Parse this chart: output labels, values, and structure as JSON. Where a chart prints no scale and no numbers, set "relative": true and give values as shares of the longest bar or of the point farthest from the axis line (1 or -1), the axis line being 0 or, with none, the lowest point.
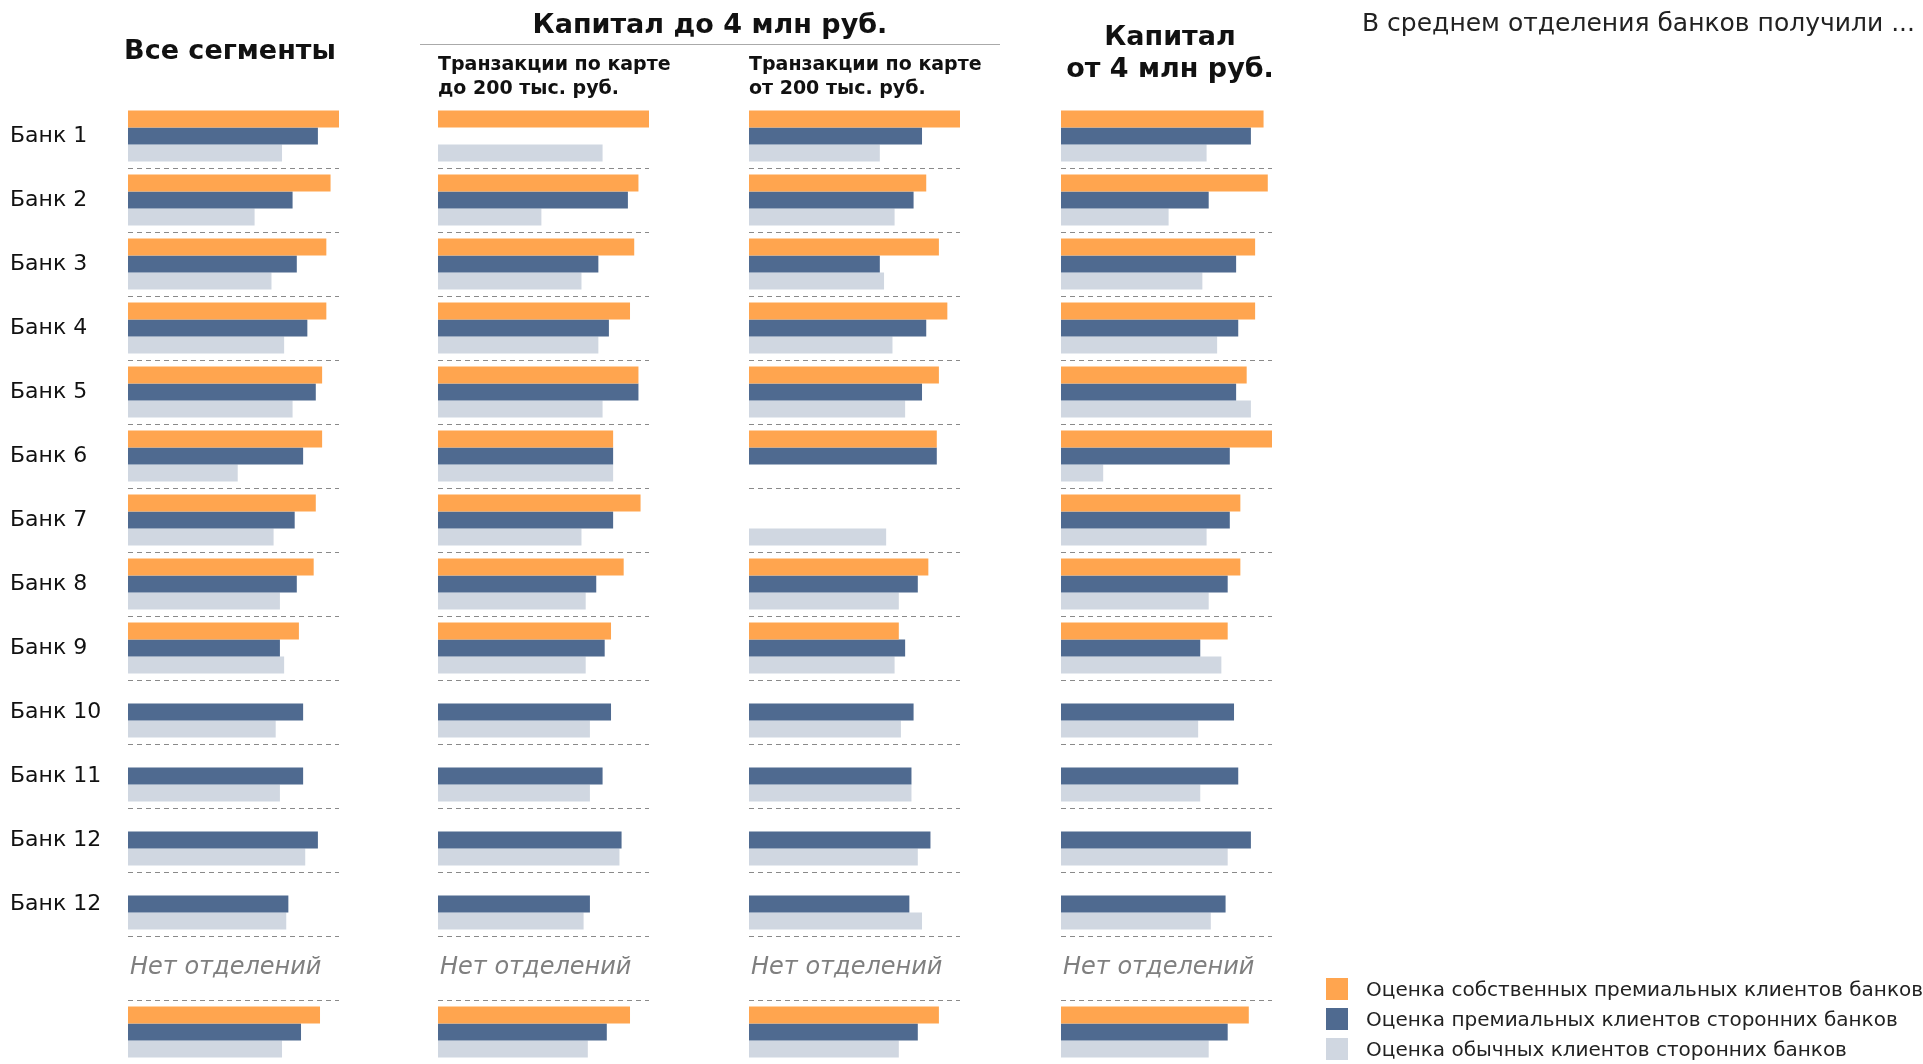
{
  "chart_data": [
    {
      "type": "bar",
      "orientation": "horizontal",
      "relative": true,
      "title": "Все сегменты",
      "grid": "y",
      "tick_labels": "y",
      "annotations": [
        "Нет отделений"
      ],
      "categories": [
        "Банк 1",
        "Банк 2",
        "Банк 3",
        "Банк 4",
        "Банк 5",
        "Банк 6",
        "Банк 7",
        "Банк 8",
        "Банк 9",
        "Банк 10",
        "Банк 11",
        "Банк 12",
        "Банк 12",
        null,
        null
      ],
      "series": [
        {
          "color": "#ffa54f",
          "values": [
            1,
            0.96,
            0.94,
            0.94,
            0.92,
            0.92,
            0.89,
            0.88,
            0.81,
            null,
            null,
            null,
            null,
            null,
            0.91
          ]
        },
        {
          "color": "#4f6a90",
          "values": [
            0.9,
            0.78,
            0.8,
            0.85,
            0.89,
            0.83,
            0.79,
            0.8,
            0.72,
            0.83,
            0.83,
            0.9,
            0.76,
            null,
            0.82
          ]
        },
        {
          "color": "#d0d7e1",
          "values": [
            0.73,
            0.6,
            0.68,
            0.74,
            0.78,
            0.52,
            0.69,
            0.72,
            0.74,
            0.7,
            0.72,
            0.84,
            0.75,
            null,
            0.73
          ]
        }
      ]
    },
    {
      "type": "bar",
      "orientation": "horizontal",
      "relative": true,
      "title": "Капитал до 4 млн руб.",
      "subtitle": "Транзакции по карте\nдо 200 тыс. руб.",
      "grid": "y",
      "tick_labels": false,
      "annotations": [
        "Нет отделений"
      ],
      "categories": [
        null,
        null,
        null,
        null,
        null,
        null,
        null,
        null,
        null,
        null,
        null,
        null,
        null,
        null,
        null
      ],
      "series": [
        {
          "color": "#ffa54f",
          "values": [
            1,
            0.95,
            0.93,
            0.91,
            0.95,
            0.83,
            0.96,
            0.88,
            0.82,
            null,
            null,
            null,
            null,
            null,
            0.91
          ]
        },
        {
          "color": "#4f6a90",
          "values": [
            null,
            0.9,
            0.76,
            0.81,
            0.95,
            0.83,
            0.83,
            0.75,
            0.79,
            0.82,
            0.78,
            0.87,
            0.72,
            null,
            0.8
          ]
        },
        {
          "color": "#d0d7e1",
          "values": [
            0.78,
            0.49,
            0.68,
            0.76,
            0.78,
            0.83,
            0.68,
            0.7,
            0.7,
            0.72,
            0.72,
            0.86,
            0.69,
            null,
            0.71
          ]
        }
      ]
    },
    {
      "type": "bar",
      "orientation": "horizontal",
      "relative": true,
      "subtitle": "Транзакции по карте\nот 200 тыс. руб.",
      "grid": "y",
      "tick_labels": false,
      "annotations": [
        "Нет отделений"
      ],
      "categories": [
        null,
        null,
        null,
        null,
        null,
        null,
        null,
        null,
        null,
        null,
        null,
        null,
        null,
        null,
        null
      ],
      "series": [
        {
          "color": "#ffa54f",
          "values": [
            1,
            0.84,
            0.9,
            0.94,
            0.9,
            0.89,
            null,
            0.85,
            0.71,
            null,
            null,
            null,
            null,
            null,
            0.9
          ]
        },
        {
          "color": "#4f6a90",
          "values": [
            0.82,
            0.78,
            0.62,
            0.84,
            0.82,
            0.89,
            null,
            0.8,
            0.74,
            0.78,
            0.77,
            0.86,
            0.76,
            null,
            0.8
          ]
        },
        {
          "color": "#d0d7e1",
          "values": [
            0.62,
            0.69,
            0.64,
            0.68,
            0.74,
            null,
            0.65,
            0.71,
            0.69,
            0.72,
            0.77,
            0.8,
            0.82,
            null,
            0.71
          ]
        }
      ]
    },
    {
      "type": "bar",
      "orientation": "horizontal",
      "relative": true,
      "title": "Капитал\nот 4 млн руб.",
      "grid": "y",
      "tick_labels": false,
      "legend": "bottom right",
      "annotations": [
        "Нет отделений"
      ],
      "categories": [
        null,
        null,
        null,
        null,
        null,
        null,
        null,
        null,
        null,
        null,
        null,
        null,
        null,
        null,
        null
      ],
      "series": [
        {
          "name": "Оценка собственных премиальных клиентов банков",
          "color": "#ffa54f",
          "values": [
            0.96,
            0.98,
            0.92,
            0.92,
            0.88,
            1,
            0.85,
            0.85,
            0.79,
            null,
            null,
            null,
            null,
            null,
            0.89
          ]
        },
        {
          "name": "Оценка премиальных клиентов сторонних банков",
          "color": "#4f6a90",
          "values": [
            0.9,
            0.7,
            0.83,
            0.84,
            0.83,
            0.8,
            0.8,
            0.79,
            0.66,
            0.82,
            0.84,
            0.9,
            0.78,
            null,
            0.79
          ]
        },
        {
          "name": "Оценка обычных клиентов сторонних банков",
          "color": "#d0d7e1",
          "values": [
            0.69,
            0.51,
            0.67,
            0.74,
            0.9,
            0.2,
            0.69,
            0.7,
            0.76,
            0.65,
            0.66,
            0.79,
            0.71,
            null,
            0.7
          ]
        }
      ]
    },
    {
      "type": "other",
      "title": "В среднем отделения банков получили ..."
    }
  ]
}
